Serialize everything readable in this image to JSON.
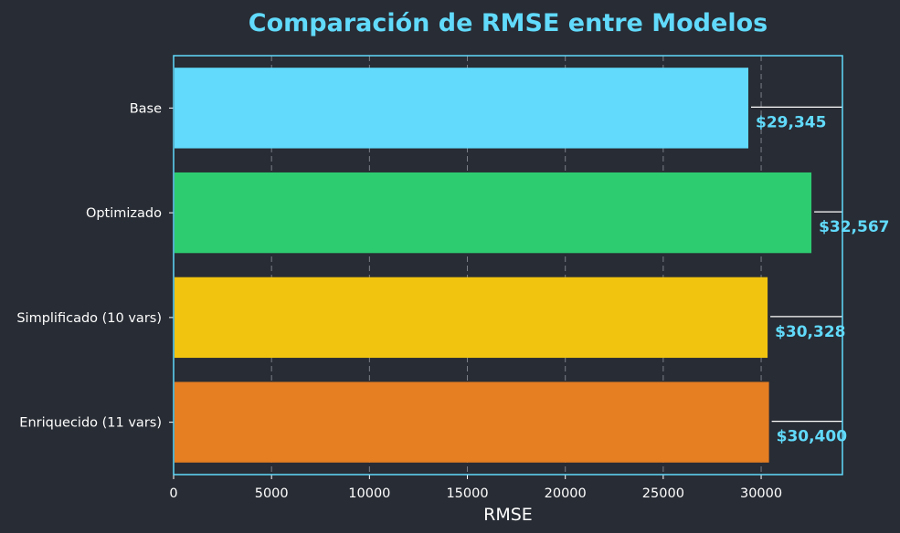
{
  "colors": {
    "background": "#282c34",
    "accent": "#61dafb",
    "text": "#ffffff",
    "grid": "#7a7f88"
  },
  "chart_data": {
    "type": "bar",
    "orientation": "horizontal",
    "title": "Comparación de RMSE entre Modelos",
    "xlabel": "RMSE",
    "ylabel": "",
    "xlim": [
      0,
      34150
    ],
    "xticks": [
      0,
      5000,
      10000,
      15000,
      20000,
      25000,
      30000
    ],
    "xtick_labels": [
      "0",
      "5000",
      "10000",
      "15000",
      "20000",
      "25000",
      "30000"
    ],
    "grid": "vertical dashed",
    "categories": [
      "Base",
      "Optimizado",
      "Simplificado (10 vars)",
      "Enriquecido (11 vars)"
    ],
    "values": [
      29345,
      32567,
      30328,
      30400
    ],
    "value_labels": [
      "$29,345",
      "$32,567",
      "$30,328",
      "$30,400"
    ],
    "bar_colors": [
      "#61dafb",
      "#2ecc71",
      "#f1c40f",
      "#e67e22"
    ]
  }
}
